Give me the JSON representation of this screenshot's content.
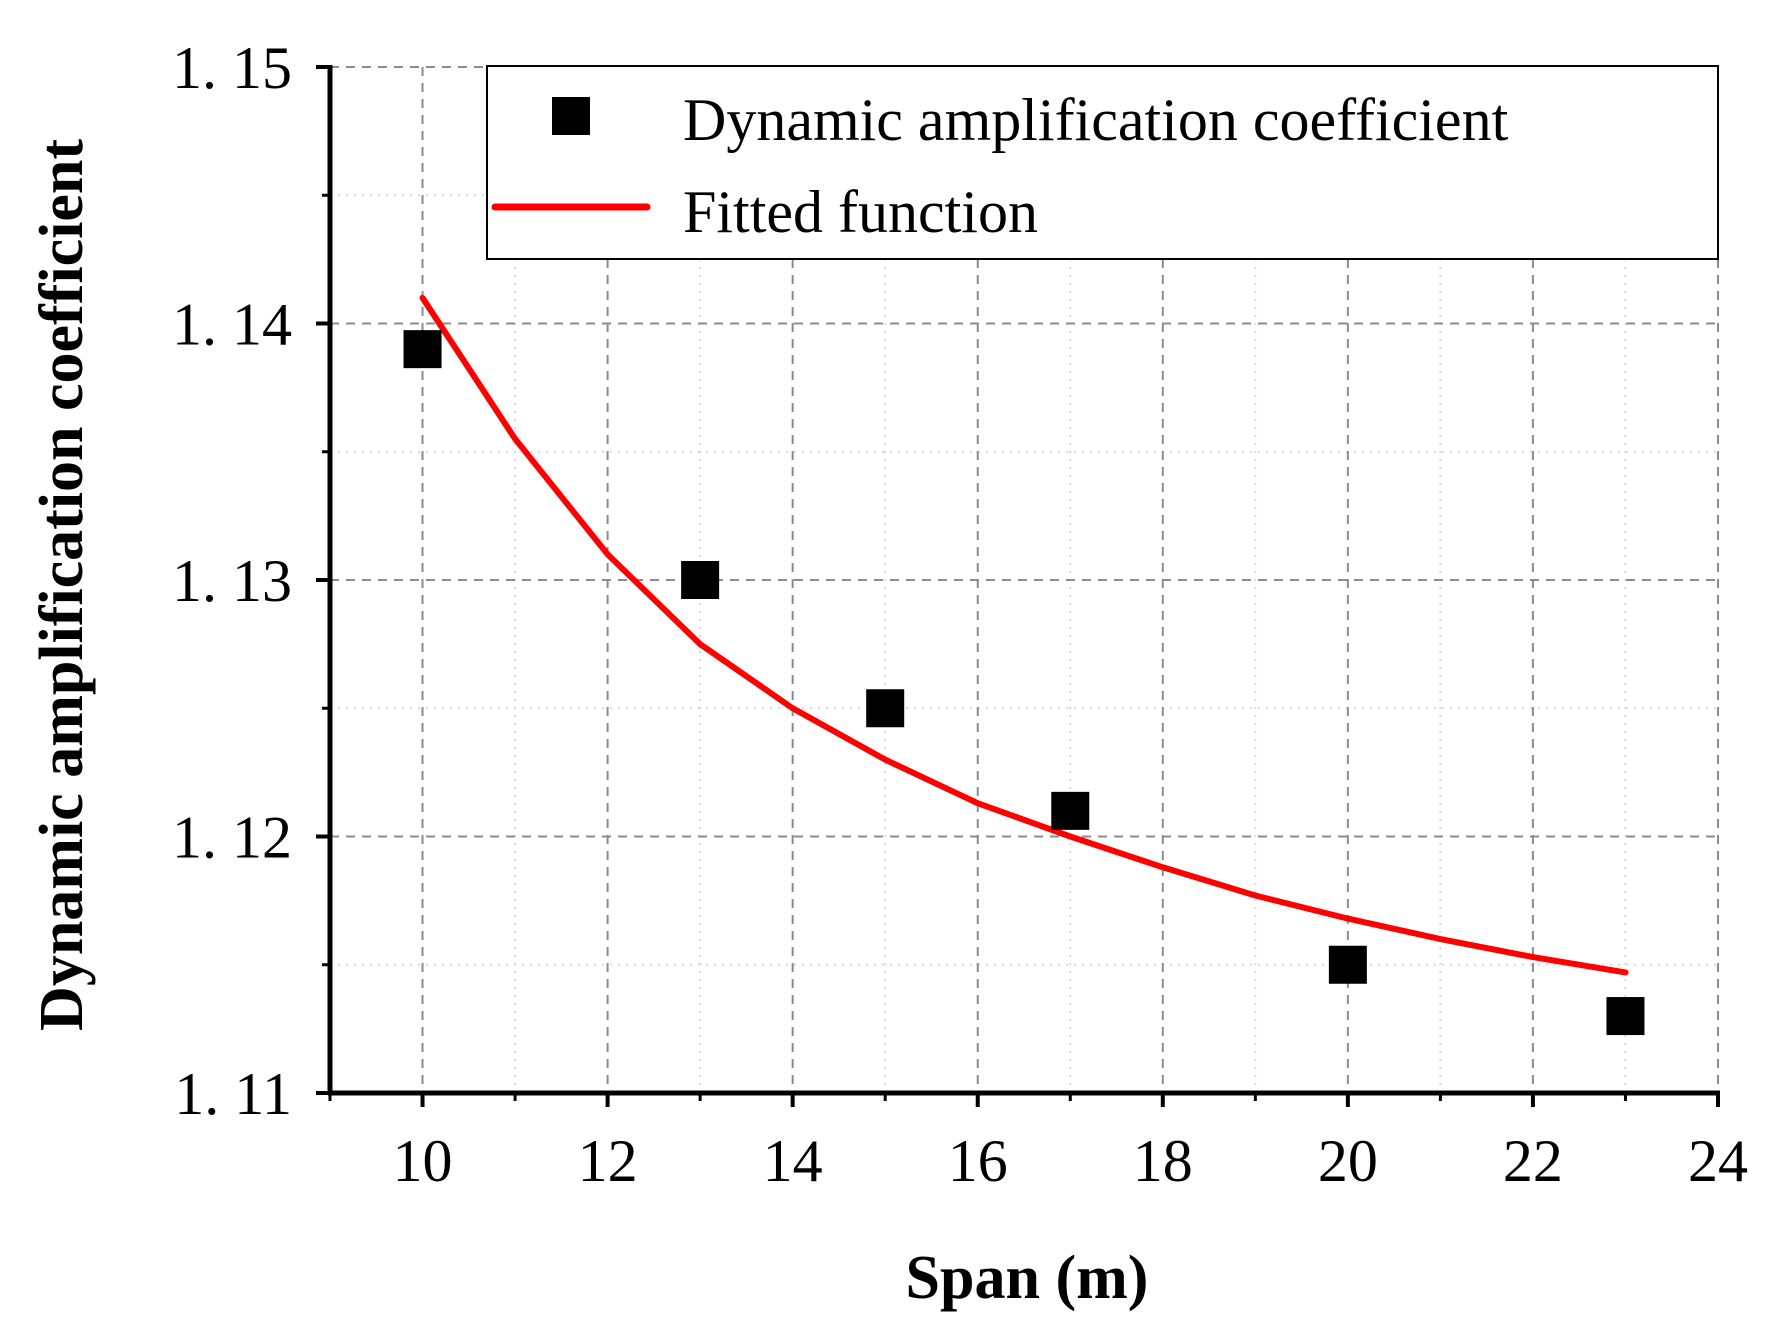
{
  "chart_data": {
    "type": "scatter",
    "title": "",
    "xlabel": "Span (m)",
    "ylabel": "Dynamic amplification coefficient",
    "xlim": [
      9,
      24
    ],
    "ylim": [
      1.11,
      1.15
    ],
    "x_ticks": [
      10,
      12,
      14,
      16,
      18,
      20,
      22,
      24
    ],
    "x_tick_labels": [
      "10",
      "12",
      "14",
      "16",
      "18",
      "20",
      "22",
      "24"
    ],
    "y_ticks": [
      1.11,
      1.12,
      1.13,
      1.14,
      1.15
    ],
    "y_tick_labels": [
      "1. 11",
      "1. 12",
      "1. 13",
      "1. 14",
      "1. 15"
    ],
    "grid": true,
    "legend_position": "top-right",
    "series": [
      {
        "name": "Dynamic amplification coefficient",
        "kind": "scatter",
        "marker": "square",
        "color": "#000000",
        "x": [
          10,
          13,
          15,
          17,
          20,
          23
        ],
        "y": [
          1.139,
          1.13,
          1.125,
          1.121,
          1.115,
          1.113
        ]
      },
      {
        "name": "Fitted function",
        "kind": "line",
        "color": "#ff0000",
        "x": [
          10,
          11,
          12,
          13,
          14,
          15,
          16,
          17,
          18,
          19,
          20,
          21,
          22,
          23
        ],
        "y": [
          1.141,
          1.1355,
          1.131,
          1.1275,
          1.125,
          1.123,
          1.1213,
          1.12,
          1.1188,
          1.1177,
          1.1168,
          1.116,
          1.1153,
          1.1147
        ]
      }
    ]
  }
}
